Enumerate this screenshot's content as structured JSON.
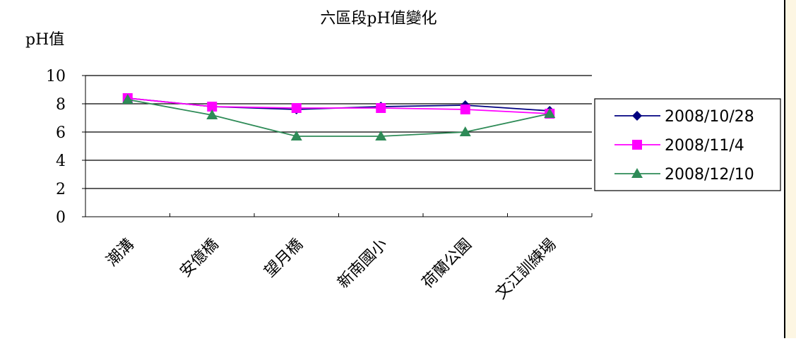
{
  "chart_data": {
    "type": "line",
    "title": "六區段pH值變化",
    "ylabel": "pH值",
    "xlabel": "",
    "ylim": [
      0,
      10
    ],
    "yticks": [
      0,
      2,
      4,
      6,
      8,
      10
    ],
    "categories": [
      "潮溝",
      "安億橋",
      "望月橋",
      "新南國小",
      "荷蘭公園",
      "文江訓練場"
    ],
    "legend_position": "right",
    "grid": true,
    "series": [
      {
        "name": "2008/10/28",
        "color": "#000080",
        "marker": "diamond",
        "values": [
          8.4,
          7.8,
          7.6,
          7.8,
          7.9,
          7.5
        ]
      },
      {
        "name": "2008/11/4",
        "color": "#ff00ff",
        "marker": "square",
        "values": [
          8.4,
          7.8,
          7.7,
          7.7,
          7.6,
          7.3
        ]
      },
      {
        "name": "2008/12/10",
        "color": "#2e8b57",
        "marker": "triangle",
        "values": [
          8.3,
          7.2,
          5.7,
          5.7,
          6.0,
          7.3
        ]
      }
    ]
  }
}
